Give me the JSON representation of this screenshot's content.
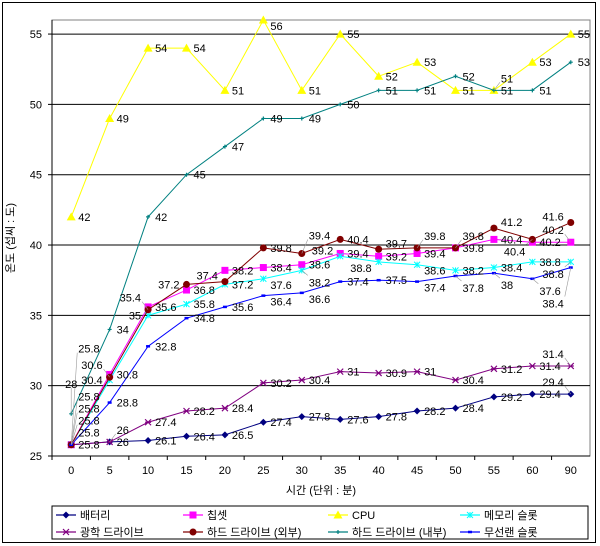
{
  "chart_data": {
    "type": "line",
    "title": "",
    "xlabel": "시간 (단위 : 분)",
    "ylabel": "온도 (섭씨 : 도)",
    "ylim": [
      25,
      56
    ],
    "yticks": [
      25,
      30,
      35,
      40,
      45,
      50,
      55
    ],
    "grid": true,
    "legend_position": "bottom",
    "categories": [
      "0",
      "5",
      "10",
      "15",
      "20",
      "25",
      "30",
      "35",
      "40",
      "45",
      "50",
      "55",
      "60",
      "90"
    ],
    "series": [
      {
        "name": "배터리",
        "color": "#000080",
        "marker": "diamond",
        "values": [
          25.8,
          26,
          26.1,
          26.4,
          26.5,
          27.4,
          27.8,
          27.6,
          27.8,
          28.2,
          28.4,
          29.2,
          29.4,
          29.4
        ]
      },
      {
        "name": "칩셋",
        "color": "#FF00FF",
        "marker": "square",
        "values": [
          25.8,
          30.8,
          35.6,
          36.8,
          38.2,
          38.4,
          38.6,
          39.4,
          39.2,
          39.4,
          39.8,
          40.4,
          40.2,
          40.2
        ]
      },
      {
        "name": "CPU",
        "color": "#FFFF00",
        "marker": "triangle",
        "values": [
          42,
          49,
          54,
          54,
          51,
          56,
          51,
          55,
          52,
          53,
          51,
          51,
          53,
          55
        ]
      },
      {
        "name": "메모리 슬롯",
        "color": "#00FFFF",
        "marker": "asterisk",
        "values": [
          25.8,
          30.4,
          35,
          35.8,
          37.2,
          37.6,
          38.2,
          39.2,
          38.8,
          38.6,
          38.2,
          38.4,
          38.8,
          38.8
        ]
      },
      {
        "name": "광학 드라이브",
        "color": "#800080",
        "marker": "xstar",
        "values": [
          25.8,
          26,
          27.4,
          28.2,
          28.4,
          30.2,
          30.4,
          31,
          30.9,
          31,
          30.4,
          31.2,
          31.4,
          31.4
        ]
      },
      {
        "name": "하드 드라이브 (외부)",
        "color": "#800000",
        "marker": "circle",
        "values": [
          25.8,
          30.6,
          35.4,
          37.2,
          37.4,
          39.8,
          39.4,
          40.4,
          39.7,
          39.8,
          39.8,
          41.2,
          40.4,
          41.6
        ]
      },
      {
        "name": "하드 드라이브 (내부)",
        "color": "#008080",
        "marker": "plus",
        "values": [
          28,
          34,
          42,
          45,
          47,
          49,
          49,
          50,
          51,
          51,
          52,
          51,
          51,
          53
        ]
      },
      {
        "name": "무선랜 슬롯",
        "color": "#0000FF",
        "marker": "dash",
        "values": [
          25.8,
          28.8,
          32.8,
          34.8,
          35.6,
          36.4,
          36.6,
          37.4,
          37.5,
          37.4,
          37.8,
          38,
          37.6,
          38.4
        ]
      }
    ]
  }
}
